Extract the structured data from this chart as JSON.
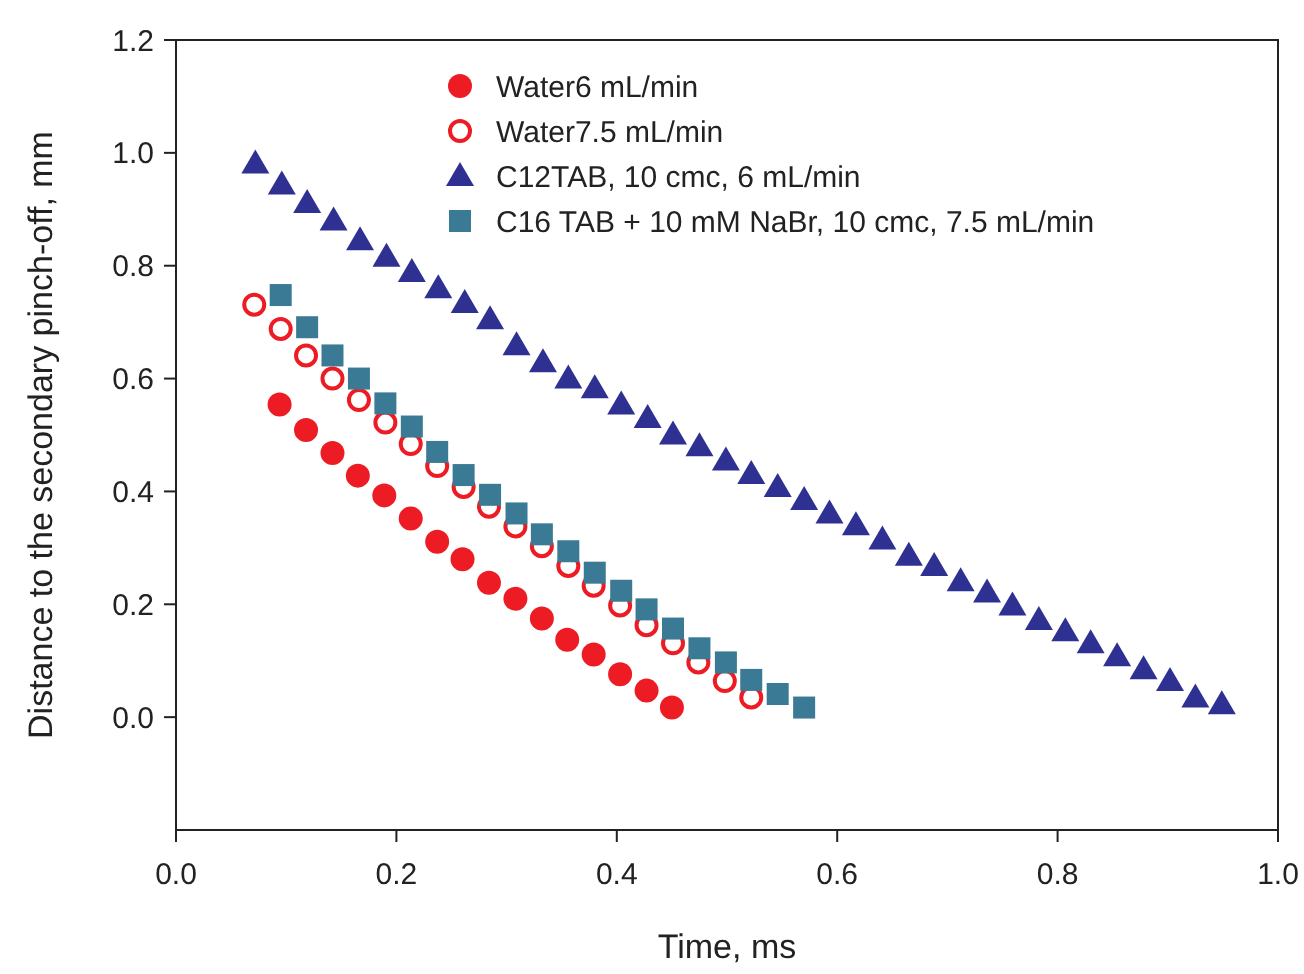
{
  "chart_data": {
    "type": "scatter",
    "xlabel": "Time, ms",
    "ylabel": "Distance to the secondary pinch-off, mm",
    "xlim": [
      0,
      1
    ],
    "ylim": [
      -0.2,
      1.2
    ],
    "xticks": [
      {
        "value": 0,
        "label": "0.0"
      },
      {
        "value": 0.2,
        "label": "0.2"
      },
      {
        "value": 0.4,
        "label": "0.4"
      },
      {
        "value": 0.6,
        "label": "0.6"
      },
      {
        "value": 0.8,
        "label": "0.8"
      },
      {
        "value": 1,
        "label": "1.0"
      }
    ],
    "yticks": [
      {
        "value": 0,
        "label": "0.0"
      },
      {
        "value": 0.2,
        "label": "0.2"
      },
      {
        "value": 0.4,
        "label": "0.4"
      },
      {
        "value": 0.6,
        "label": "0.6"
      },
      {
        "value": 0.8,
        "label": "0.8"
      },
      {
        "value": 1,
        "label": "1.0"
      },
      {
        "value": 1.2,
        "label": "1.2"
      }
    ],
    "grid": false,
    "legend": "top",
    "series": [
      {
        "name": "Water6 mL/min",
        "color": "#ed1c24",
        "marker": "circle",
        "x": [
          0.094,
          0.118,
          0.142,
          0.165,
          0.189,
          0.213,
          0.237,
          0.26,
          0.284,
          0.308,
          0.332,
          0.355,
          0.379,
          0.403,
          0.427,
          0.45
        ],
        "values": [
          0.554,
          0.509,
          0.468,
          0.428,
          0.393,
          0.352,
          0.311,
          0.28,
          0.238,
          0.21,
          0.175,
          0.137,
          0.111,
          0.076,
          0.047,
          0.017
        ]
      },
      {
        "name": "Water7.5 mL/min",
        "color": "#ed1c24",
        "marker": "circle-open",
        "x": [
          0.071,
          0.095,
          0.118,
          0.142,
          0.166,
          0.19,
          0.213,
          0.237,
          0.261,
          0.284,
          0.308,
          0.332,
          0.356,
          0.379,
          0.403,
          0.427,
          0.451,
          0.474,
          0.498,
          0.522
        ],
        "values": [
          0.731,
          0.688,
          0.641,
          0.6,
          0.562,
          0.522,
          0.484,
          0.445,
          0.408,
          0.373,
          0.338,
          0.303,
          0.268,
          0.233,
          0.198,
          0.163,
          0.131,
          0.097,
          0.064,
          0.035
        ]
      },
      {
        "name": "C12TAB, 10 cmc, 6 mL/min",
        "color": "#2e3192",
        "marker": "triangle",
        "x": [
          0.072,
          0.096,
          0.119,
          0.143,
          0.167,
          0.191,
          0.214,
          0.238,
          0.262,
          0.285,
          0.309,
          0.333,
          0.356,
          0.38,
          0.404,
          0.428,
          0.451,
          0.475,
          0.499,
          0.522,
          0.546,
          0.57,
          0.593,
          0.617,
          0.641,
          0.665,
          0.688,
          0.712,
          0.736,
          0.759,
          0.783,
          0.807,
          0.83,
          0.854,
          0.878,
          0.902,
          0.925,
          0.949
        ],
        "values": [
          0.981,
          0.944,
          0.911,
          0.88,
          0.845,
          0.816,
          0.789,
          0.76,
          0.734,
          0.705,
          0.659,
          0.629,
          0.6,
          0.583,
          0.554,
          0.53,
          0.501,
          0.48,
          0.455,
          0.431,
          0.408,
          0.385,
          0.361,
          0.34,
          0.315,
          0.286,
          0.268,
          0.241,
          0.221,
          0.198,
          0.172,
          0.152,
          0.131,
          0.108,
          0.085,
          0.064,
          0.035,
          0.023
        ]
      },
      {
        "name": "C16 TAB + 10 mM NaBr, 10 cmc, 7.5 mL/min",
        "color": "#3a7a94",
        "marker": "square",
        "x": [
          0.095,
          0.119,
          0.142,
          0.166,
          0.19,
          0.214,
          0.237,
          0.261,
          0.285,
          0.309,
          0.332,
          0.356,
          0.38,
          0.404,
          0.427,
          0.451,
          0.475,
          0.499,
          0.522,
          0.546,
          0.57
        ],
        "values": [
          0.748,
          0.691,
          0.641,
          0.6,
          0.556,
          0.515,
          0.47,
          0.429,
          0.394,
          0.361,
          0.324,
          0.294,
          0.256,
          0.224,
          0.191,
          0.157,
          0.122,
          0.097,
          0.066,
          0.041,
          0.017
        ]
      }
    ]
  }
}
